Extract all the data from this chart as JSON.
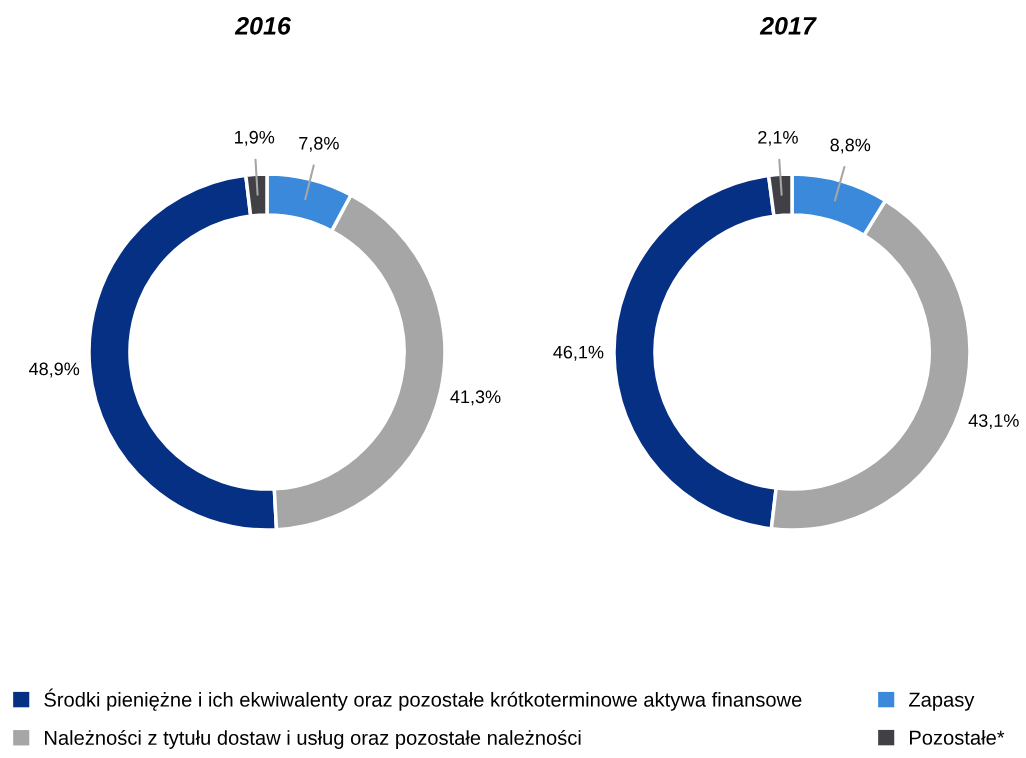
{
  "chart_data": {
    "type": "donut",
    "categories": [
      "Środki pieniężne i ich ekwiwalenty oraz pozostałe krótkoterminowe aktywa finansowe",
      "Należności z tytułu dostaw i usług oraz pozostałe należności",
      "Zapasy",
      "Pozostałe*"
    ],
    "colors": [
      "#063083",
      "#a6a6a6",
      "#3a89db",
      "#404045"
    ],
    "legend": "bottom",
    "series": [
      {
        "name": "2016",
        "values": [
          48.9,
          41.3,
          7.8,
          1.9
        ],
        "value_labels": [
          "48,9%",
          "41,3%",
          "7,8%",
          "1,9%"
        ]
      },
      {
        "name": "2017",
        "values": [
          46.1,
          43.1,
          8.8,
          2.1
        ],
        "value_labels": [
          "46,1%",
          "43,1%",
          "8,8%",
          "2,1%"
        ]
      }
    ]
  }
}
